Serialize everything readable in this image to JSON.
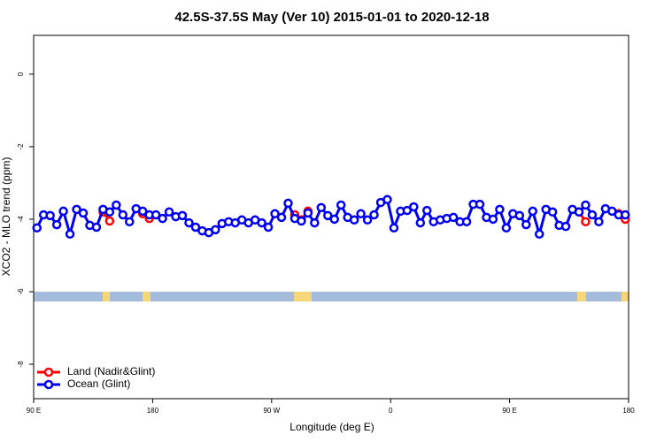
{
  "chart_data": {
    "type": "line",
    "title": "42.5S-37.5S May (Ver 10)   2015-01-01 to 2020-12-18",
    "x_label": "Longitude (deg E)",
    "y_label": "XCO2 - MLO trend (ppm)",
    "x": [
      92.5,
      97.5,
      102.5,
      107.5,
      112.5,
      117.5,
      122.5,
      127.5,
      132.5,
      137.5,
      142.5,
      147.5,
      152.5,
      157.5,
      162.5,
      167.5,
      172.5,
      177.5,
      182.5,
      187.5,
      192.5,
      197.5,
      202.5,
      207.5,
      212.5,
      217.5,
      222.5,
      227.5,
      232.5,
      237.5,
      242.5,
      247.5,
      252.5,
      257.5,
      262.5,
      267.5,
      272.5,
      277.5,
      282.5,
      287.5,
      292.5,
      297.5,
      302.5,
      307.5,
      312.5,
      317.5,
      322.5,
      327.5,
      332.5,
      337.5,
      342.5,
      347.5,
      352.5,
      357.5,
      362.5,
      367.5,
      372.5,
      377.5,
      382.5,
      387.5,
      392.5,
      397.5,
      402.5,
      407.5,
      412.5,
      417.5,
      422.5,
      427.5,
      432.5,
      437.5,
      442.5,
      447.5,
      452.5,
      457.5,
      462.5,
      467.5,
      472.5,
      477.5,
      482.5,
      487.5,
      492.5,
      497.5,
      502.5,
      507.5,
      512.5,
      517.5,
      522.5,
      527.5,
      532.5,
      537.5
    ],
    "series": [
      {
        "name": "Land (Nadir&Glint)",
        "color": "#ff0000",
        "values": [
          null,
          null,
          null,
          null,
          null,
          null,
          null,
          null,
          null,
          null,
          -3.8,
          -4.05,
          null,
          null,
          null,
          null,
          -3.85,
          -3.98,
          null,
          null,
          null,
          null,
          null,
          null,
          null,
          null,
          null,
          null,
          null,
          null,
          null,
          null,
          null,
          null,
          null,
          null,
          null,
          null,
          null,
          -3.88,
          -4.02,
          -3.78,
          null,
          null,
          null,
          null,
          null,
          null,
          null,
          null,
          null,
          null,
          null,
          null,
          null,
          null,
          null,
          null,
          null,
          null,
          null,
          null,
          null,
          null,
          null,
          null,
          null,
          null,
          null,
          null,
          null,
          null,
          null,
          null,
          null,
          null,
          null,
          null,
          null,
          null,
          null,
          null,
          -3.8,
          -4.07,
          null,
          null,
          null,
          null,
          -3.85,
          -4.0
        ]
      },
      {
        "name": "Ocean (Glint)",
        "color": "#0000ee",
        "values": [
          -4.24,
          -3.88,
          -3.9,
          -4.15,
          -3.78,
          -4.41,
          -3.73,
          -3.83,
          -4.17,
          -4.22,
          -3.73,
          -3.8,
          -3.61,
          -3.88,
          -4.07,
          -3.71,
          -3.78,
          -3.88,
          -3.88,
          -3.98,
          -3.8,
          -3.93,
          -3.9,
          -4.1,
          -4.22,
          -4.32,
          -4.37,
          -4.29,
          -4.12,
          -4.07,
          -4.1,
          -4.02,
          -4.1,
          -4.02,
          -4.1,
          -4.22,
          -3.85,
          -3.95,
          -3.56,
          -3.98,
          -4.05,
          -3.83,
          -4.1,
          -3.68,
          -3.9,
          -4.0,
          -3.61,
          -3.95,
          -4.02,
          -3.85,
          -4.02,
          -3.88,
          -3.54,
          -3.46,
          -4.24,
          -3.78,
          -3.76,
          -3.66,
          -4.1,
          -3.76,
          -4.07,
          -4.02,
          -3.98,
          -3.95,
          -4.07,
          -4.07,
          -3.59,
          -3.59,
          -3.95,
          -4.0,
          -3.73,
          -4.24,
          -3.85,
          -3.9,
          -4.15,
          -3.78,
          -4.41,
          -3.73,
          -3.8,
          -4.17,
          -4.2,
          -3.73,
          -3.8,
          -3.61,
          -3.88,
          -4.07,
          -3.71,
          -3.78,
          -3.88,
          -3.88
        ]
      }
    ],
    "xlim": [
      90,
      540
    ],
    "xticks": [
      {
        "value": 90,
        "label": "90 E"
      },
      {
        "value": 180,
        "label": "180"
      },
      {
        "value": 270,
        "label": "90 W"
      },
      {
        "value": 360,
        "label": "0"
      },
      {
        "value": 450,
        "label": "90 E"
      },
      {
        "value": 540,
        "label": "180"
      }
    ],
    "ylim": [
      -8.95,
      1.07
    ],
    "yticks": [
      0,
      -2,
      -4,
      -6,
      -8
    ],
    "legend": "bottom-left"
  }
}
